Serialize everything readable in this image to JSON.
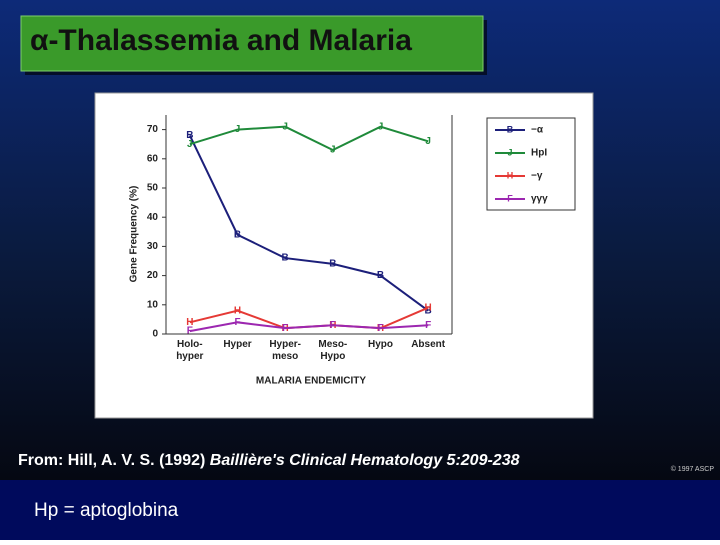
{
  "slide_title": "α-Thalassemia and Malaria",
  "source": {
    "prefix": "From: Hill, A. V. S. (1992) ",
    "citation": "Baillière's Clinical Hematology 5:209-238"
  },
  "copyright": "© 1997 ASCP",
  "footer": "Hp = aptoglobina",
  "chart_data": {
    "type": "line",
    "ylabel": "Gene Frequency (%)",
    "xlabel": "MALARIA ENDEMICITY",
    "categories": [
      "Holo-\nhyper",
      "Hyper",
      "Hyper-\nmeso",
      "Meso-\nHypo",
      "Hypo",
      "Absent"
    ],
    "ylim": [
      0,
      75
    ],
    "yticks": [
      0,
      10,
      20,
      30,
      40,
      50,
      60,
      70
    ],
    "series": [
      {
        "name": "−α",
        "marker": "B",
        "color": "#1c1f7a",
        "values": [
          68,
          34,
          26,
          24,
          20,
          8
        ]
      },
      {
        "name": "HpI",
        "marker": "J",
        "color": "#1f8a3a",
        "values": [
          65,
          70,
          71,
          63,
          71,
          66
        ]
      },
      {
        "name": "−γ",
        "marker": "H",
        "color": "#e53935",
        "values": [
          4,
          8,
          2,
          3,
          2,
          9
        ]
      },
      {
        "name": "γγγ",
        "marker": "F",
        "color": "#9c27b0",
        "values": [
          1,
          4,
          2,
          3,
          2,
          3
        ]
      }
    ]
  }
}
